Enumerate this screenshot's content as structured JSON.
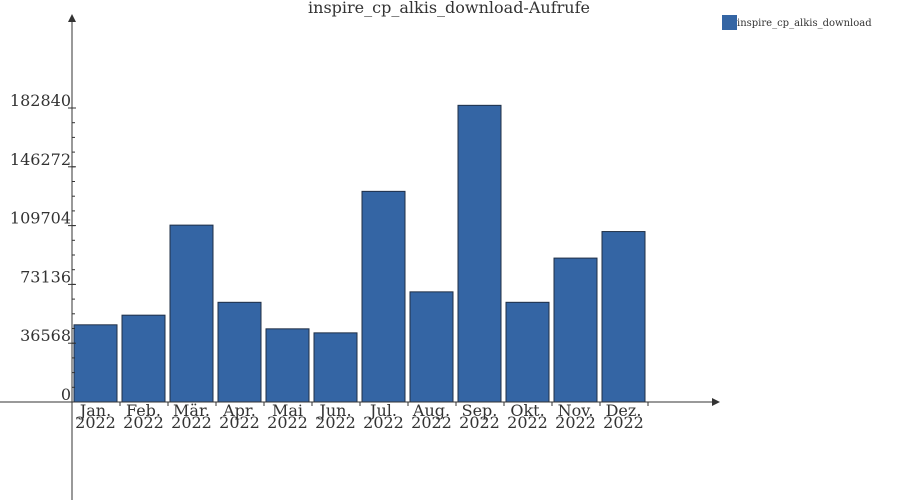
{
  "colors": {
    "bar": "#3465a4",
    "axis": "#333333"
  },
  "chart_data": {
    "type": "bar",
    "title": "inspire_cp_alkis_download-Aufrufe",
    "xlabel": "",
    "ylabel": "",
    "categories": [
      [
        "Jan.",
        "2022"
      ],
      [
        "Feb.",
        "2022"
      ],
      [
        "Mär.",
        "2022"
      ],
      [
        "Apr.",
        "2022"
      ],
      [
        "Mai",
        "2022"
      ],
      [
        "Jun.",
        "2022"
      ],
      [
        "Jul.",
        "2022"
      ],
      [
        "Aug.",
        "2022"
      ],
      [
        "Sep.",
        "2022"
      ],
      [
        "Okt.",
        "2022"
      ],
      [
        "Nov.",
        "2022"
      ],
      [
        "Dez.",
        "2022"
      ]
    ],
    "series": [
      {
        "name": "inspire_cp_alkis_download",
        "values": [
          48000,
          54000,
          110000,
          62000,
          45500,
          43000,
          131000,
          68500,
          184500,
          62000,
          89500,
          106000
        ]
      }
    ],
    "yticks": [
      0,
      36568,
      73136,
      109704,
      146272,
      182840
    ],
    "ylim": [
      0,
      182840
    ],
    "grid": false,
    "legend": "top-right"
  }
}
